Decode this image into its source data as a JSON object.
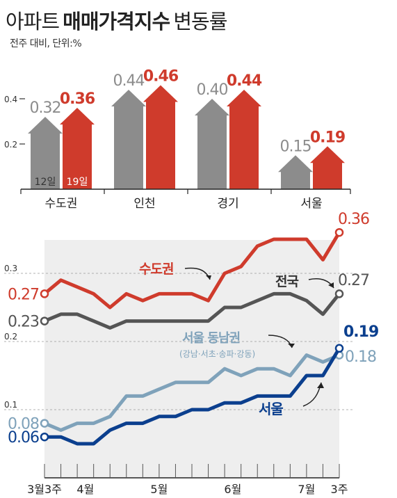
{
  "title_part1": "아파트",
  "title_part2": "매매가격지수",
  "title_part3": "변동률",
  "subtitle": "전주 대비, 단위:%",
  "colors": {
    "gray": "#8c8c8c",
    "red": "#cf3b2c",
    "navy": "#0b3f8e",
    "light_blue": "#7fa2ba",
    "text_gray": "#6e6e6e"
  },
  "chart_data": [
    {
      "type": "bar",
      "categories": [
        "수도권",
        "인천",
        "경기",
        "서울"
      ],
      "series": [
        {
          "name": "12일",
          "values": [
            0.32,
            0.44,
            0.4,
            0.15
          ],
          "value_labels": [
            "0.32",
            "0.44",
            "0.40",
            "0.15"
          ]
        },
        {
          "name": "19일",
          "values": [
            0.36,
            0.46,
            0.44,
            0.19
          ],
          "value_labels": [
            "0.36",
            "0.46",
            "0.44",
            "0.19"
          ]
        }
      ],
      "y_ticks": [
        0.4,
        0.2
      ],
      "y_tick_labels": [
        "0.4",
        "0.2"
      ]
    },
    {
      "type": "line",
      "x_labels": [
        "3월3주",
        "4월",
        "5월",
        "6월",
        "7월",
        "3주"
      ],
      "y_ticks": [
        0.3,
        0.2,
        0.1
      ],
      "y_tick_labels": [
        "0.3",
        "0.2",
        "0.1"
      ],
      "ylim": [
        0.0,
        0.38
      ],
      "series": [
        {
          "name": "수도권",
          "start_label": "0.27",
          "end_label": "0.36",
          "values": [
            0.27,
            0.29,
            0.28,
            0.27,
            0.25,
            0.27,
            0.26,
            0.27,
            0.27,
            0.27,
            0.26,
            0.3,
            0.31,
            0.34,
            0.35,
            0.35,
            0.35,
            0.32,
            0.36
          ]
        },
        {
          "name": "전국",
          "start_label": "0.23",
          "end_label": "0.27",
          "values": [
            0.23,
            0.24,
            0.24,
            0.23,
            0.22,
            0.23,
            0.23,
            0.23,
            0.23,
            0.23,
            0.23,
            0.25,
            0.25,
            0.26,
            0.27,
            0.27,
            0.26,
            0.24,
            0.27
          ]
        },
        {
          "name": "서울 동남권",
          "sub_label": "(강남·서초·송파·강동)",
          "start_label": "0.08",
          "end_label": "0.18",
          "values": [
            0.08,
            0.07,
            0.08,
            0.08,
            0.09,
            0.12,
            0.12,
            0.13,
            0.14,
            0.14,
            0.14,
            0.16,
            0.15,
            0.16,
            0.16,
            0.15,
            0.18,
            0.17,
            0.18
          ]
        },
        {
          "name": "서울",
          "start_label": "0.06",
          "end_label": "0.19",
          "values": [
            0.06,
            0.06,
            0.05,
            0.05,
            0.07,
            0.08,
            0.08,
            0.09,
            0.09,
            0.1,
            0.1,
            0.11,
            0.11,
            0.12,
            0.12,
            0.12,
            0.15,
            0.15,
            0.19
          ]
        }
      ]
    }
  ]
}
